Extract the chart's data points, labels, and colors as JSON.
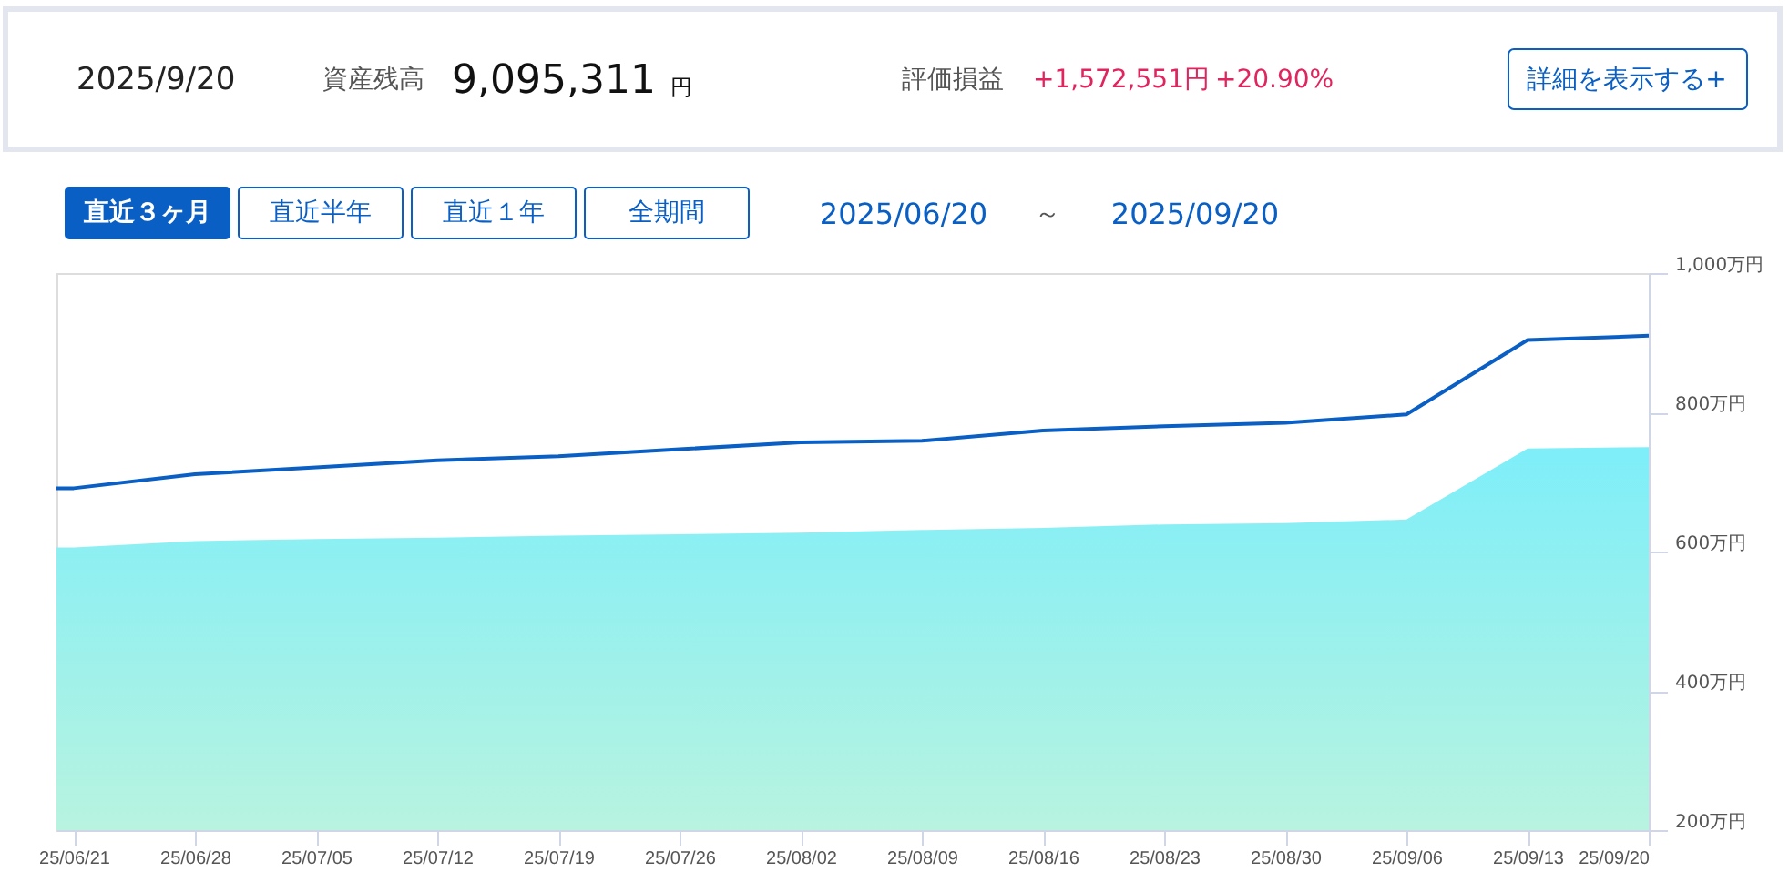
{
  "chart_data": {
    "type": "line",
    "x": [
      "2025-06-20",
      "2025-06-21",
      "2025-06-28",
      "2025-07-05",
      "2025-07-12",
      "2025-07-19",
      "2025-07-26",
      "2025-08-02",
      "2025-08-09",
      "2025-08-16",
      "2025-08-23",
      "2025-08-30",
      "2025-09-06",
      "2025-09-13",
      "2025-09-20"
    ],
    "series": [
      {
        "type": "area",
        "color": "#7eeef9",
        "values": [
          606,
          606,
          615,
          618,
          620,
          623,
          625,
          627,
          631,
          634,
          639,
          641,
          646,
          748,
          750
        ]
      },
      {
        "type": "line",
        "color": "#0a5fc4",
        "values": [
          691,
          691,
          711,
          721,
          731,
          737,
          747,
          757,
          759,
          774,
          780,
          785,
          797,
          904,
          910
        ]
      }
    ],
    "xlim": [
      "2025-06-20",
      "2025-09-20"
    ],
    "xticks": [
      {
        "value": "2025-06-21",
        "label": "25/06/21"
      },
      {
        "value": "2025-06-28",
        "label": "25/06/28"
      },
      {
        "value": "2025-07-05",
        "label": "25/07/05"
      },
      {
        "value": "2025-07-12",
        "label": "25/07/12"
      },
      {
        "value": "2025-07-19",
        "label": "25/07/19"
      },
      {
        "value": "2025-07-26",
        "label": "25/07/26"
      },
      {
        "value": "2025-08-02",
        "label": "25/08/02"
      },
      {
        "value": "2025-08-09",
        "label": "25/08/09"
      },
      {
        "value": "2025-08-16",
        "label": "25/08/16"
      },
      {
        "value": "2025-08-23",
        "label": "25/08/23"
      },
      {
        "value": "2025-08-30",
        "label": "25/08/30"
      },
      {
        "value": "2025-09-06",
        "label": "25/09/06"
      },
      {
        "value": "2025-09-13",
        "label": "25/09/13"
      },
      {
        "value": "2025-09-20",
        "label": "25/09/20"
      }
    ],
    "ylim": [
      200,
      1000
    ],
    "yticks": [
      {
        "value": 200,
        "label": "200万円"
      },
      {
        "value": 400,
        "label": "400万円"
      },
      {
        "value": 600,
        "label": "600万円"
      },
      {
        "value": 800,
        "label": "800万円"
      },
      {
        "value": 1000,
        "label": "1,000万円"
      }
    ],
    "grid": false,
    "marker": "none",
    "annotations": [
      "2025/9/20",
      "資産残高",
      "9,095,311",
      "円",
      "評価損益",
      "+1,572,551円",
      "+20.90%",
      "詳細を表示する+",
      "直近３ヶ月",
      "直近半年",
      "直近１年",
      "全期間",
      "2025/06/20",
      "～",
      "2025/09/20"
    ]
  }
}
